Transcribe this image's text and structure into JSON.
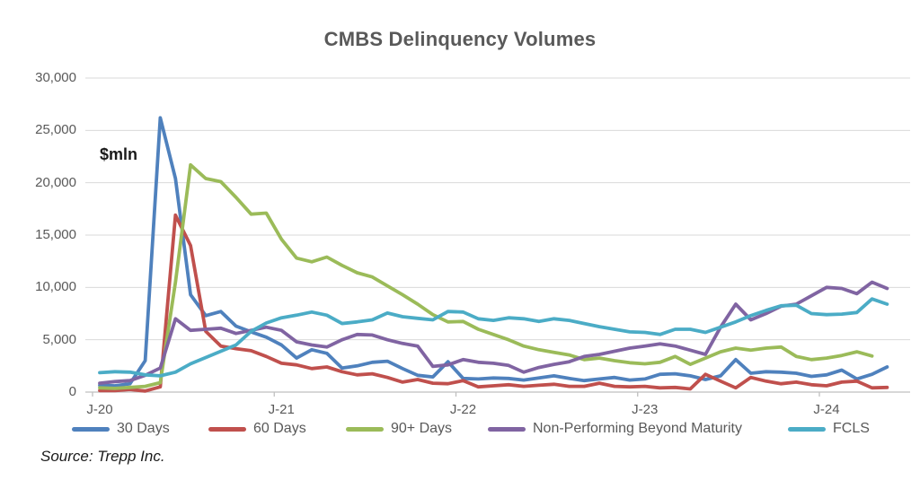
{
  "title": "CMBS Delinquency Volumes",
  "unit_label": "$mln",
  "source": "Source: Trepp Inc.",
  "chart_data": {
    "type": "line",
    "title": "CMBS Delinquency Volumes",
    "ylabel": "$mln",
    "x_unit": "monthly, Jan-2020 through May-2024",
    "x_tick_labels": [
      "J-20",
      "J-21",
      "J-22",
      "J-23",
      "J-24"
    ],
    "y_ticks": [
      0,
      5000,
      10000,
      15000,
      20000,
      25000,
      30000
    ],
    "y_tick_labels": [
      "0",
      "5,000",
      "10,000",
      "15,000",
      "20,000",
      "25,000",
      "30,000"
    ],
    "ylim": [
      0,
      30000
    ],
    "grid": "horizontal",
    "legend_position": "bottom",
    "series": [
      {
        "name": "30 Days",
        "color": "#4F81BD",
        "values": [
          650,
          600,
          800,
          3000,
          26200,
          20400,
          9300,
          7300,
          7700,
          6300,
          5750,
          5250,
          4500,
          3250,
          4050,
          3700,
          2300,
          2500,
          2850,
          2950,
          2250,
          1600,
          1450,
          2900,
          1300,
          1250,
          1350,
          1300,
          1150,
          1350,
          1550,
          1300,
          1100,
          1250,
          1400,
          1150,
          1250,
          1700,
          1750,
          1550,
          1200,
          1550,
          3100,
          1800,
          1950,
          1900,
          1800,
          1500,
          1650,
          2100,
          1250,
          1700,
          2400
        ]
      },
      {
        "name": "60 Days",
        "color": "#C0504D",
        "values": [
          150,
          150,
          250,
          100,
          500,
          16900,
          14000,
          5800,
          4400,
          4150,
          3950,
          3400,
          2750,
          2600,
          2250,
          2400,
          1950,
          1650,
          1750,
          1400,
          950,
          1200,
          850,
          800,
          1100,
          500,
          600,
          700,
          550,
          650,
          750,
          550,
          550,
          850,
          550,
          500,
          550,
          400,
          450,
          300,
          1700,
          1050,
          400,
          1400,
          1050,
          800,
          950,
          700,
          600,
          950,
          1050,
          400,
          450
        ]
      },
      {
        "name": "90+ Days",
        "color": "#9BBB59",
        "values": [
          400,
          350,
          450,
          550,
          900,
          10500,
          21700,
          20400,
          20100,
          18600,
          17000,
          17100,
          14600,
          12800,
          12450,
          12900,
          12100,
          11400,
          11000,
          10150,
          9300,
          8400,
          7400,
          6700,
          6750,
          6000,
          5500,
          5000,
          4400,
          4050,
          3800,
          3550,
          3100,
          3250,
          3000,
          2800,
          2700,
          2850,
          3400,
          2650,
          3250,
          3850,
          4200,
          4000,
          4200,
          4300,
          3400,
          3100,
          3250,
          3500,
          3850,
          3450,
          null
        ]
      },
      {
        "name": "Non-Performing Beyond Maturity",
        "color": "#8064A2",
        "values": [
          850,
          1000,
          1100,
          1600,
          2300,
          7000,
          5900,
          6000,
          6100,
          5600,
          5900,
          6200,
          5900,
          4800,
          4500,
          4300,
          5000,
          5500,
          5450,
          5000,
          4650,
          4400,
          2450,
          2600,
          3100,
          2850,
          2750,
          2550,
          1900,
          2350,
          2650,
          2900,
          3400,
          3600,
          3900,
          4200,
          4400,
          4600,
          4400,
          4000,
          3600,
          6200,
          8400,
          6900,
          7500,
          8200,
          8400,
          9200,
          10000,
          9900,
          9400,
          10500,
          9900
        ]
      },
      {
        "name": "FCLS",
        "color": "#4BACC6",
        "values": [
          1850,
          1950,
          1900,
          1650,
          1550,
          1900,
          2700,
          3300,
          3900,
          4500,
          5800,
          6600,
          7100,
          7350,
          7650,
          7350,
          6550,
          6700,
          6900,
          7550,
          7200,
          7050,
          6900,
          7700,
          7650,
          7000,
          6850,
          7100,
          7000,
          6750,
          7000,
          6850,
          6550,
          6250,
          6000,
          5750,
          5700,
          5500,
          6000,
          6000,
          5700,
          6200,
          6700,
          7300,
          7800,
          8250,
          8300,
          7500,
          7400,
          7450,
          7600,
          8900,
          8400
        ]
      }
    ],
    "style": {
      "grid_color": "#D9D9D9",
      "axis_color": "#BFBFBF",
      "label_color": "#595959",
      "line_width": 3.8
    }
  }
}
